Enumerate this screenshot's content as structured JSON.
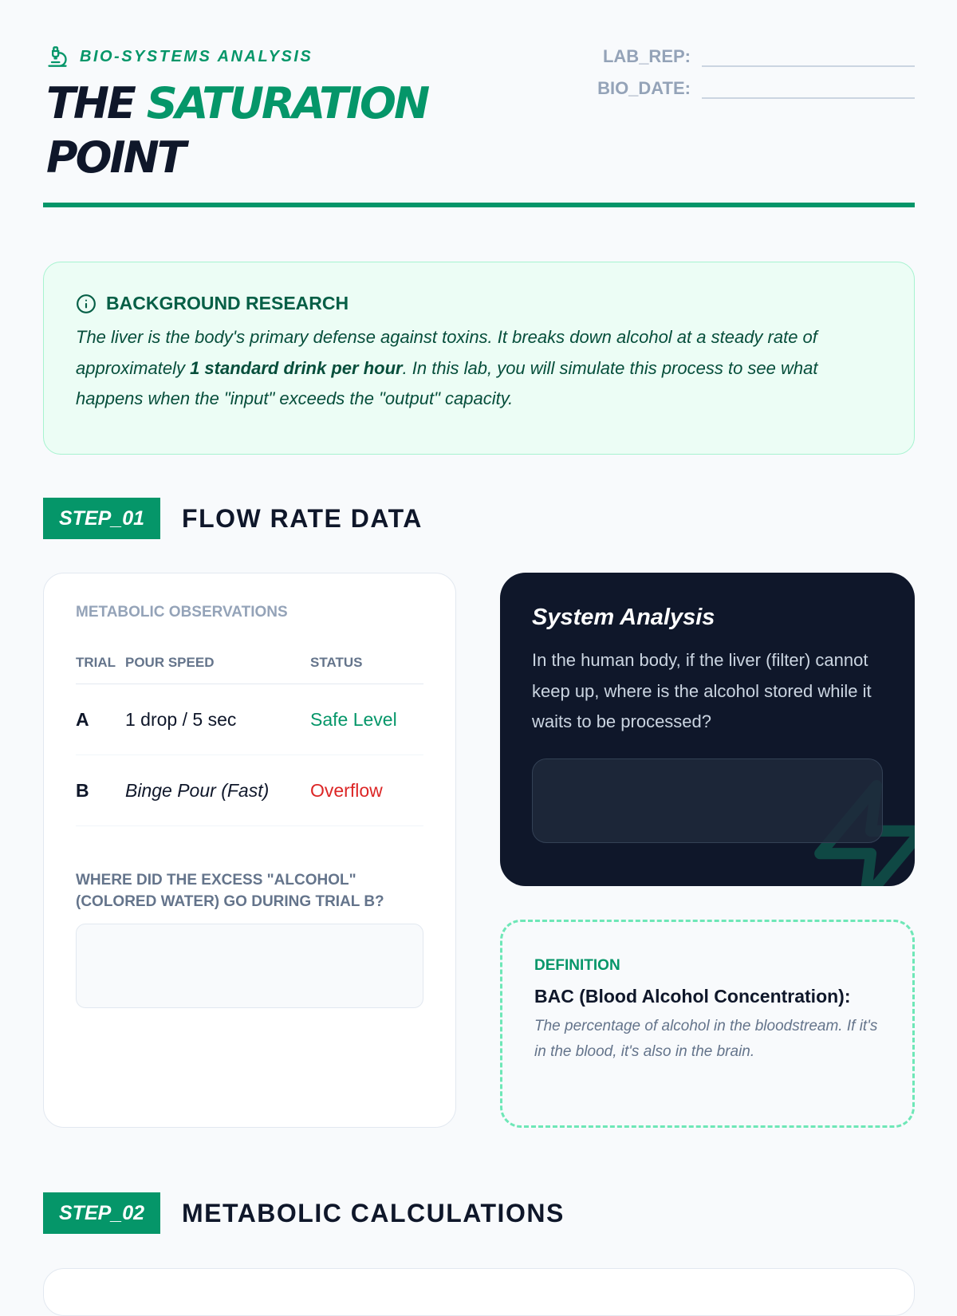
{
  "header": {
    "eyebrow": "BIO-SYSTEMS ANALYSIS",
    "title_part1": "THE ",
    "title_accent": "SATURATION",
    "title_part2": "POINT",
    "fields": [
      {
        "label": "LAB_REP:",
        "value": ""
      },
      {
        "label": "BIO_DATE:",
        "value": ""
      }
    ]
  },
  "background": {
    "heading": "BACKGROUND RESEARCH",
    "text_before": "The liver is the body's primary defense against toxins. It breaks down alcohol at a steady rate of approximately ",
    "text_bold": "1 standard drink per hour",
    "text_after": ". In this lab, you will simulate this process to see what happens when the \"input\" exceeds the \"output\" capacity."
  },
  "step1": {
    "badge": "STEP_01",
    "title": "FLOW RATE DATA",
    "observations": {
      "heading": "METABOLIC OBSERVATIONS",
      "columns": [
        "TRIAL",
        "POUR SPEED",
        "STATUS"
      ],
      "rows": [
        {
          "trial": "A",
          "speed": "1 drop / 5 sec",
          "status": "Safe Level"
        },
        {
          "trial": "B",
          "speed": "Binge Pour (Fast)",
          "status": "Overflow"
        }
      ],
      "question": "WHERE DID THE EXCESS \"ALCOHOL\" (COLORED WATER) GO DURING TRIAL B?",
      "answer": ""
    },
    "analysis": {
      "title": "System Analysis",
      "text": "In the human body, if the liver (filter) cannot keep up, where is the alcohol stored while it waits to be processed?",
      "answer": ""
    },
    "definition": {
      "label": "DEFINITION",
      "term": "BAC (Blood Alcohol Concentration):",
      "text": "The percentage of alcohol in the bloodstream. If it's in the blood, it's also in the brain."
    }
  },
  "step2": {
    "badge": "STEP_02",
    "title": "METABOLIC CALCULATIONS"
  },
  "colors": {
    "accent": "#059669",
    "safe": "#059669",
    "overflow": "#dc2626",
    "dark": "#0f172a"
  }
}
